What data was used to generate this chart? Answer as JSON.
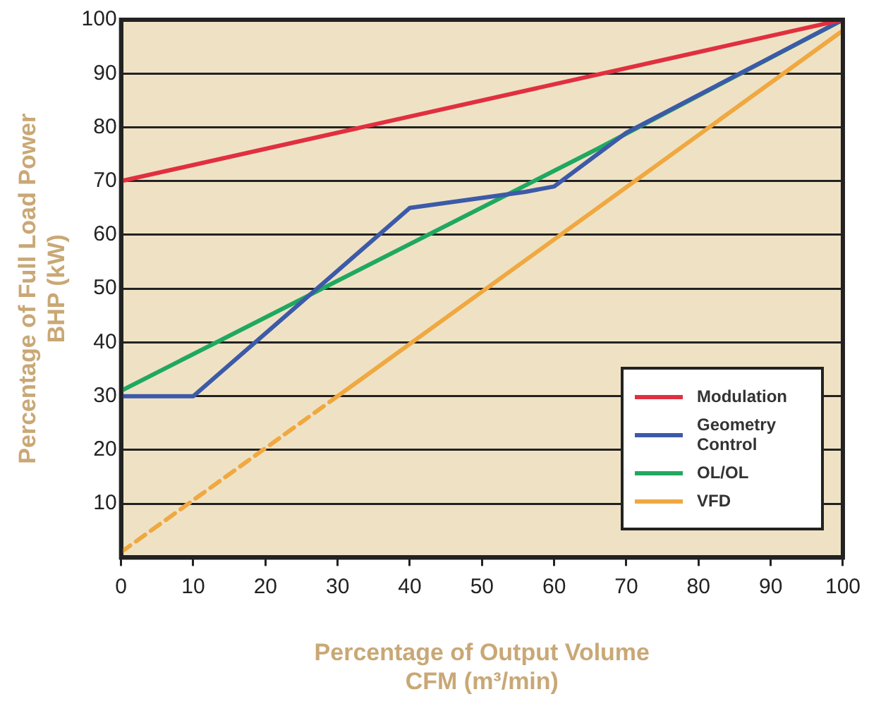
{
  "chart_data": {
    "type": "line",
    "xlabel": "Percentage of Output Volume\nCFM (m³/min)",
    "ylabel": "Percentage of Full Load Power\nBHP (kW)",
    "xlim": [
      0,
      100
    ],
    "xticks": [
      0,
      10,
      20,
      30,
      40,
      50,
      60,
      70,
      80,
      90,
      100
    ],
    "ylim": [
      0,
      100
    ],
    "yticks": [
      10,
      20,
      30,
      40,
      50,
      60,
      70,
      80,
      90,
      100
    ],
    "grid": "y",
    "legend": "bottom right",
    "marker": "none",
    "series": [
      {
        "name": "Modulation",
        "color": "#e03040",
        "x": [
          0,
          100
        ],
        "values": [
          70,
          100
        ]
      },
      {
        "name": "Geometry Control",
        "color": "#3c5aa8",
        "x": [
          0,
          10,
          40,
          56,
          60,
          70,
          100
        ],
        "values": [
          30,
          30,
          65,
          68,
          69,
          79,
          100
        ]
      },
      {
        "name": "OL/OL",
        "color": "#20a860",
        "x": [
          0,
          66,
          100
        ],
        "values": [
          31,
          76,
          100
        ]
      },
      {
        "name": "VFD",
        "color": "#f0a840",
        "x": [
          30,
          100
        ],
        "values": [
          30,
          98
        ]
      },
      {
        "color": "#f0a840",
        "line_style": "dashed",
        "x": [
          0,
          30
        ],
        "values": [
          1,
          30
        ]
      }
    ]
  }
}
